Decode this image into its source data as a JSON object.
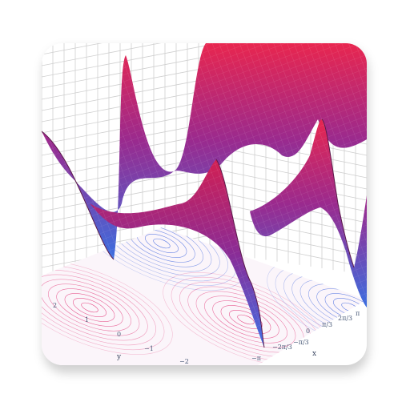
{
  "app": {
    "icon_name": "surface-plot-app-icon"
  },
  "plot": {
    "type": "3d-surface",
    "grid": true,
    "colors": {
      "surface_top": "#e8264f",
      "surface_mid": "#9a2a8e",
      "surface_bottom": "#3b6ee0",
      "grid_line": "#c9c9c9",
      "contour_pink": "#e33a7a",
      "contour_blue": "#4a6fe0"
    },
    "y_axis": {
      "name": "y",
      "ticks": [
        "2",
        "1",
        "0",
        "−1",
        "−2"
      ]
    },
    "x_axis": {
      "name": "x",
      "ticks": [
        "−π",
        "−2π/3",
        "−π/3",
        "0",
        "π/3",
        "2π/3",
        "π"
      ]
    }
  }
}
